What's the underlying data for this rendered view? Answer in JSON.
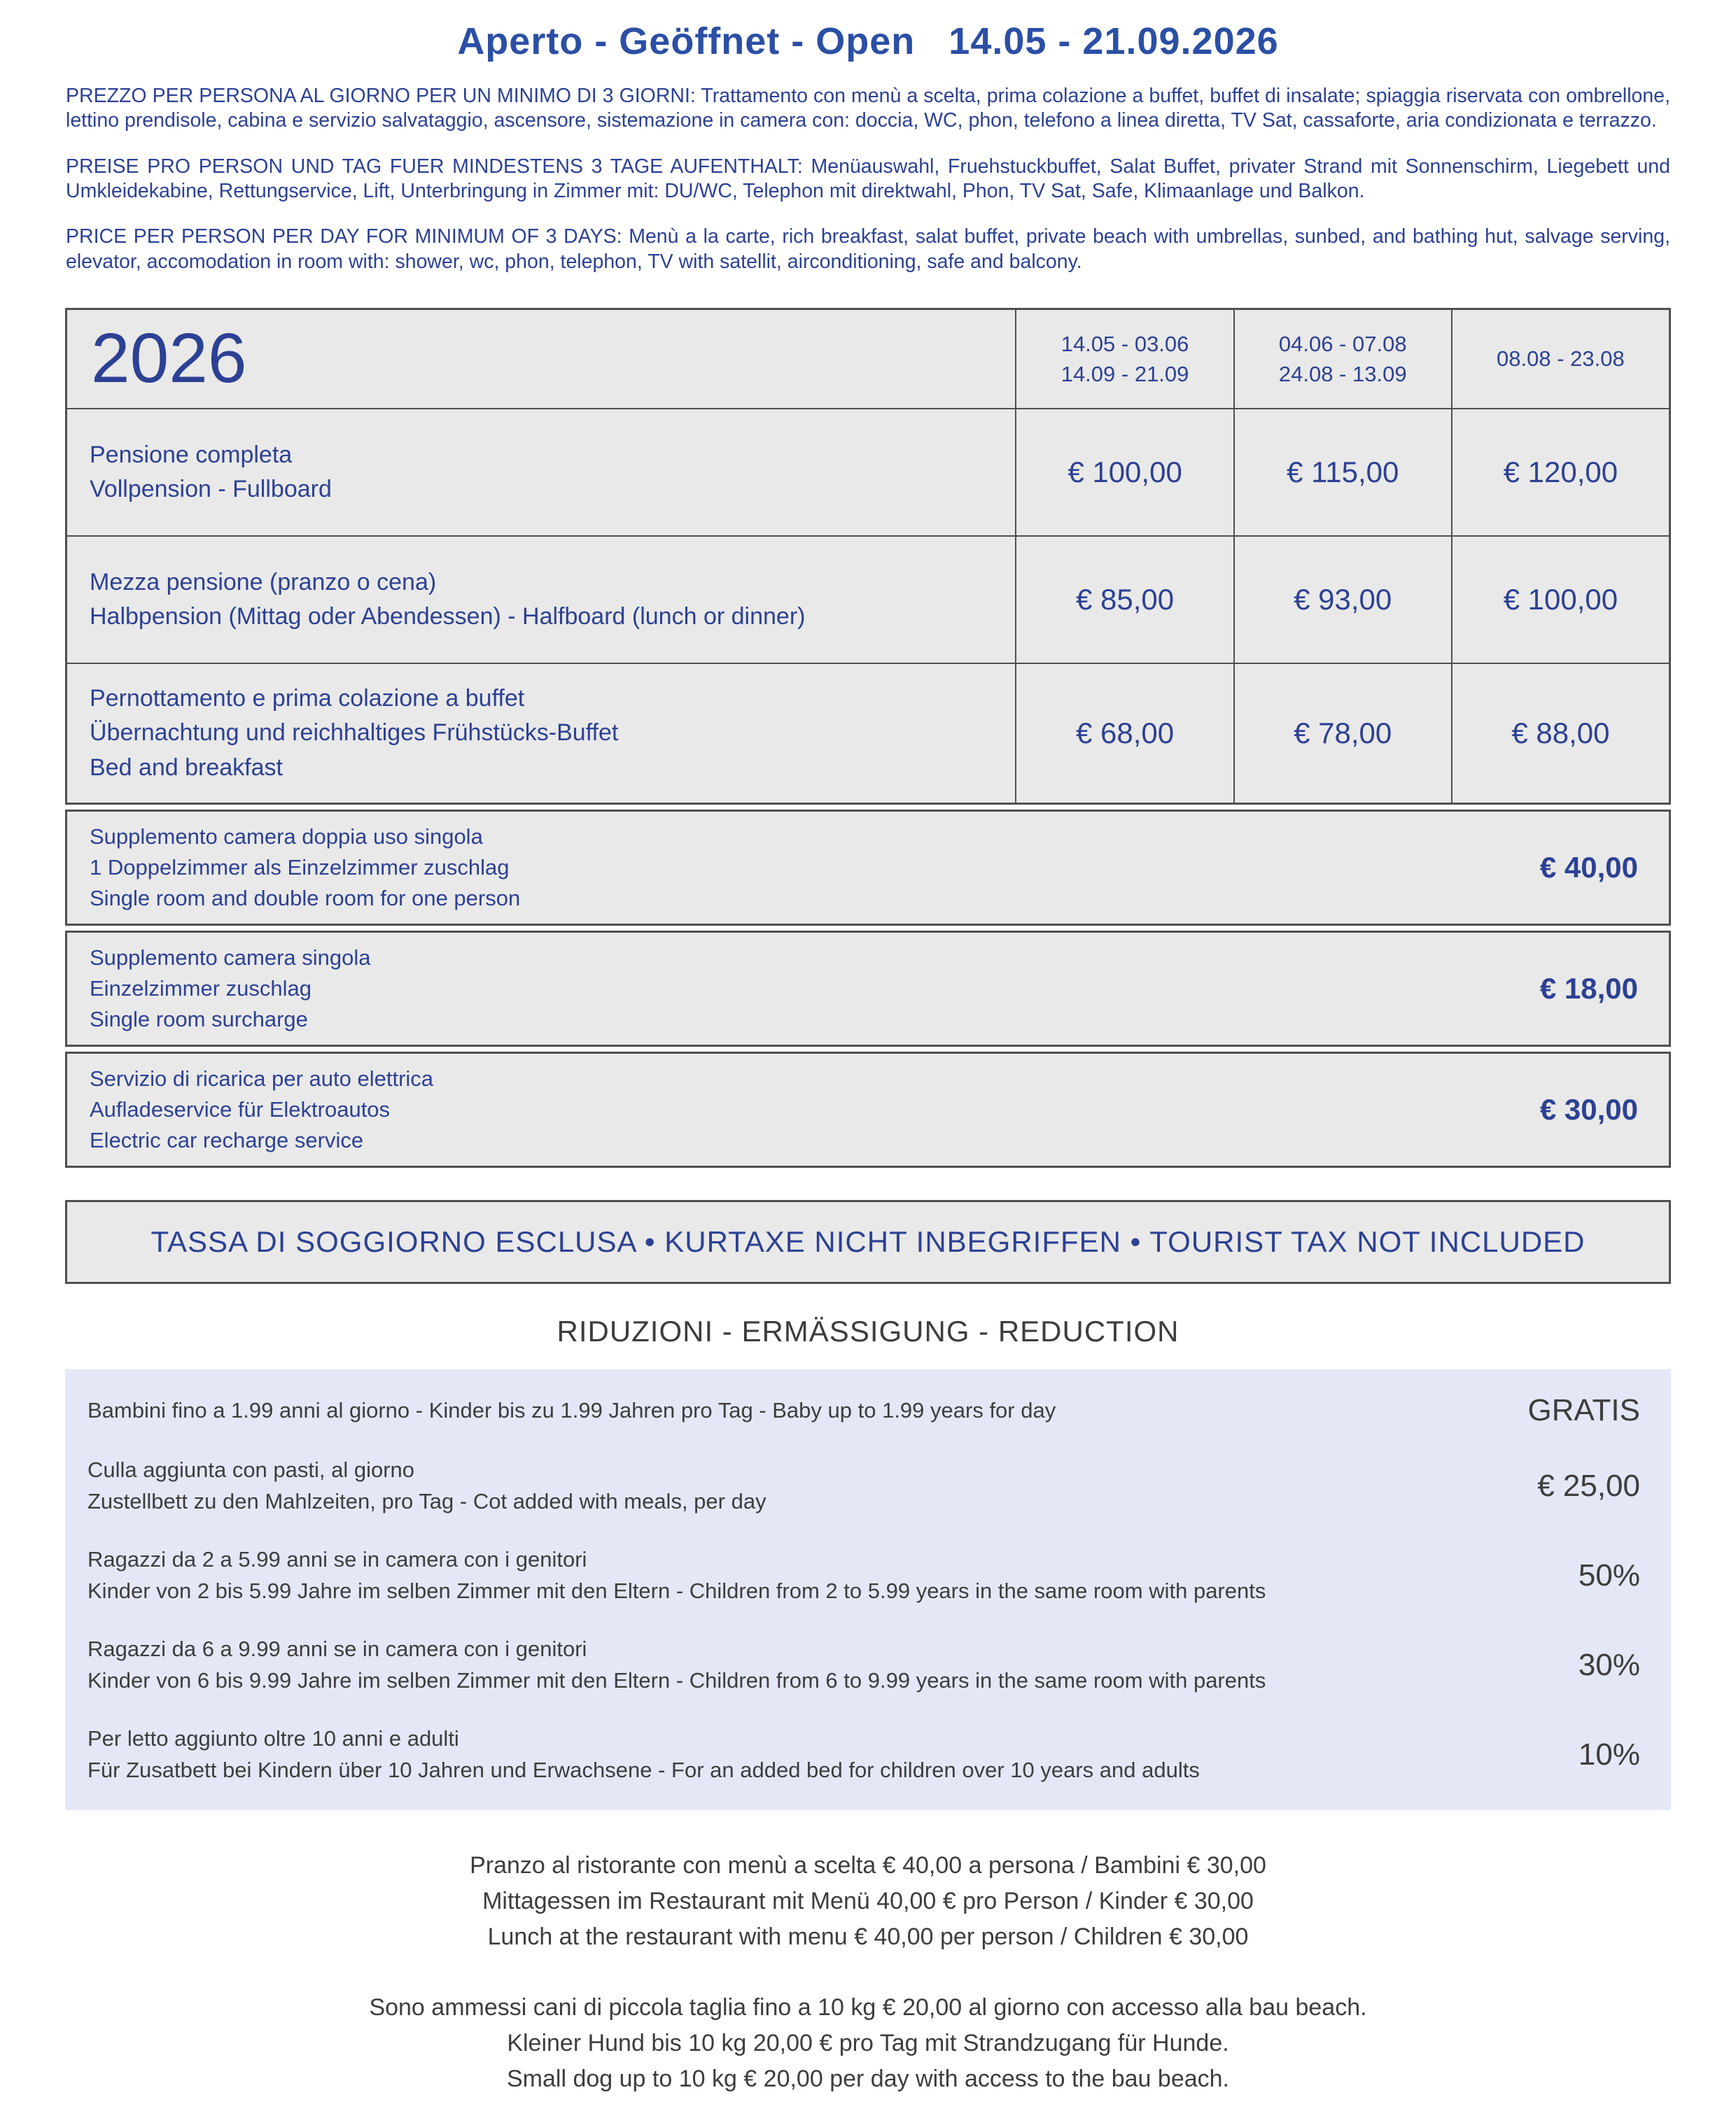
{
  "header": {
    "title": "Aperto - Geöffnet - Open   14.05 - 21.09.2026"
  },
  "intro": {
    "italian": "PREZZO PER PERSONA AL GIORNO PER UN MINIMO DI 3 GIORNI: Trattamento con menù a scelta, prima colazione a buffet, buffet di insalate; spiaggia riservata con ombrellone, lettino prendisole, cabina e servizio salvataggio, ascensore, sistemazione in camera con: doccia, WC, phon, telefono a linea diretta, TV Sat, cassaforte, aria condizionata e terrazzo.",
    "german": "PREISE PRO PERSON UND TAG FUER MINDESTENS 3 TAGE AUFENTHALT: Menüauswahl, Fruehstuckbuffet, Salat Buffet, privater Strand mit Sonnenschirm, Liegebett und Umkleidekabine, Rettungservice, Lift, Unterbringung in Zimmer mit: DU/WC, Telephon mit direktwahl, Phon, TV Sat, Safe, Klimaanlage und Balkon.",
    "english": "PRICE PER PERSON PER DAY FOR MINIMUM OF 3 DAYS: Menù a la carte, rich breakfast, salat buffet, private beach with umbrellas, sunbed, and bathing hut, salvage serving, elevator, accomodation in room with: shower, wc, phon, telephon, TV with satellit, airconditioning, safe and balcony."
  },
  "price_table": {
    "year": "2026",
    "season_columns": [
      "14.05 - 03.06\n14.09 - 21.09",
      "04.06 - 07.08\n24.08 - 13.09",
      "08.08 - 23.08"
    ],
    "rows": [
      {
        "label": "Pensione completa\nVollpension - Fullboard",
        "prices": [
          "€ 100,00",
          "€ 115,00",
          "€ 120,00"
        ]
      },
      {
        "label": "Mezza pensione (pranzo o cena)\nHalbpension (Mittag oder Abendessen) - Halfboard (lunch or dinner)",
        "prices": [
          "€ 85,00",
          "€ 93,00",
          "€ 100,00"
        ]
      },
      {
        "label": "Pernottamento e prima colazione a buffet\nÜbernachtung und reichhaltiges Frühstücks-Buffet\nBed and breakfast",
        "prices": [
          "€ 68,00",
          "€ 78,00",
          "€ 88,00"
        ]
      }
    ],
    "supplements": [
      {
        "label": "Supplemento camera doppia uso singola\n1 Doppelzimmer als Einzelzimmer zuschlag\nSingle room and double room for one person",
        "price": "€ 40,00"
      },
      {
        "label": "Supplemento camera singola\nEinzelzimmer zuschlag\nSingle room surcharge",
        "price": "€ 18,00"
      },
      {
        "label": "Servizio di ricarica per auto elettrica\nAufladeservice für Elektroautos\nElectric car recharge service",
        "price": "€ 30,00"
      }
    ]
  },
  "tax_banner": "TASSA DI SOGGIORNO ESCLUSA •  KURTAXE NICHT INBEGRIFFEN •  TOURIST TAX NOT INCLUDED",
  "reductions": {
    "heading": "RIDUZIONI - ERMÄSSIGUNG - REDUCTION",
    "rows": [
      {
        "label": "Bambini fino a 1.99 anni al giorno  -  Kinder bis zu 1.99 Jahren pro Tag  -  Baby up to 1.99 years for day",
        "value": "GRATIS"
      },
      {
        "label": "Culla aggiunta con pasti, al giorno\nZustellbett zu den Mahlzeiten, pro Tag  -  Cot added with meals, per day",
        "value": "€ 25,00"
      },
      {
        "label": "Ragazzi da 2 a 5.99 anni se in camera con i genitori\nKinder von 2 bis 5.99 Jahre im selben Zimmer mit den Eltern -  Children from 2 to 5.99 years in the same room with parents",
        "value": "50%"
      },
      {
        "label": "Ragazzi da 6 a 9.99 anni se in camera con i genitori\nKinder von 6 bis 9.99 Jahre im selben Zimmer mit den Eltern -  Children from 6 to 9.99 years in the same room with parents",
        "value": "30%"
      },
      {
        "label": "Per letto aggiunto oltre 10 anni e adulti\nFür Zusatbett bei Kindern über 10 Jahren und Erwachsene  -  For an added bed for children over 10 years and adults",
        "value": "10%"
      }
    ]
  },
  "footer": {
    "lunch_info": "Pranzo al ristorante con menù a scelta € 40,00 a persona / Bambini € 30,00\nMittagessen im Restaurant mit Menü 40,00 € pro Person / Kinder € 30,00\nLunch at the restaurant with menu € 40,00 per person / Children € 30,00",
    "dog_policy": "Sono ammessi cani di piccola taglia fino a 10 kg € 20,00 al giorno con accesso alla bau beach.\nKleiner Hund bis 10 kg 20,00 € pro Tag mit Strandzugang für Hunde.\nSmall dog up to 10 kg € 20,00 per day with access to the bau beach."
  },
  "colors": {
    "navy_text": "#2c4194",
    "title_blue": "#2b4fa5",
    "table_background": "#e9e9e9",
    "table_border": "#4f4f4f",
    "reductions_background": "#e4e8f6",
    "dark_text": "#3d3d3d"
  }
}
